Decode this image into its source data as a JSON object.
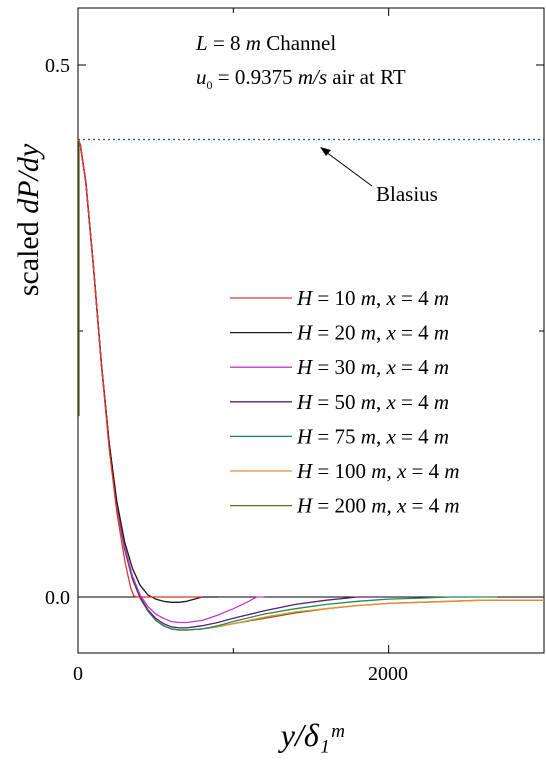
{
  "chart_data": {
    "type": "line",
    "xlabel": "y/δ₁ᵐ",
    "ylabel": "scaled dP/dy",
    "xlim": [
      0,
      3000
    ],
    "ylim": [
      -0.05,
      0.55
    ],
    "xticks": [
      0,
      2000
    ],
    "xtick_labels": [
      "0",
      "2000"
    ],
    "yticks": [
      0.0,
      0.5
    ],
    "ytick_labels": [
      "0.0",
      "0.5"
    ],
    "grid": false,
    "legend_position": "right",
    "annotations": {
      "line1_L": "L",
      "line1_text": " = 8 ",
      "line1_m": "m",
      "line1_channel": " Channel",
      "line2_u": "u",
      "line2_sub": "0",
      "line2_text": " = 0.9375 ",
      "line2_unit": "m/s",
      "line2_tail": " air at RT",
      "blasius": "Blasius"
    },
    "reference_line": {
      "name": "Blasius",
      "y": 0.43,
      "color": "#1f4e9c"
    },
    "series": [
      {
        "name": "H = 10 m, x = 4 m",
        "H": "10",
        "x_val": "4",
        "color": "#e8332a",
        "x": [
          0,
          15,
          50,
          100,
          150,
          200,
          250,
          300,
          340,
          360,
          380,
          400,
          500,
          600,
          700,
          800
        ],
        "y": [
          0.43,
          0.425,
          0.39,
          0.31,
          0.22,
          0.14,
          0.08,
          0.035,
          0.008,
          0.001,
          0.0,
          0.0,
          0.0,
          0.0,
          0.0,
          0.0
        ]
      },
      {
        "name": "H = 20 m, x = 4 m",
        "H": "20",
        "x_val": "4",
        "color": "#1a1a1a",
        "x": [
          0,
          15,
          50,
          100,
          150,
          200,
          250,
          300,
          350,
          400,
          450,
          500,
          550,
          600,
          650,
          700,
          750,
          800,
          900
        ],
        "y": [
          0.43,
          0.425,
          0.39,
          0.31,
          0.22,
          0.145,
          0.09,
          0.052,
          0.027,
          0.011,
          0.002,
          -0.002,
          -0.004,
          -0.005,
          -0.005,
          -0.004,
          -0.002,
          0.0,
          0.0
        ]
      },
      {
        "name": "H = 30 m, x = 4 m",
        "H": "30",
        "x_val": "4",
        "color": "#c03cc8",
        "x": [
          0,
          15,
          50,
          100,
          150,
          200,
          250,
          300,
          350,
          400,
          450,
          500,
          550,
          600,
          650,
          700,
          800,
          900,
          1000,
          1100,
          1150,
          1200
        ],
        "y": [
          0.43,
          0.425,
          0.39,
          0.31,
          0.22,
          0.145,
          0.088,
          0.048,
          0.02,
          0.002,
          -0.009,
          -0.016,
          -0.02,
          -0.023,
          -0.024,
          -0.024,
          -0.022,
          -0.017,
          -0.011,
          -0.004,
          0.0,
          0.0
        ]
      },
      {
        "name": "H = 50 m, x = 4 m",
        "H": "50",
        "x_val": "4",
        "color": "#5a1c78",
        "x": [
          0,
          15,
          50,
          100,
          150,
          200,
          250,
          300,
          350,
          400,
          450,
          500,
          550,
          600,
          650,
          700,
          800,
          900,
          1000,
          1200,
          1400,
          1600,
          1800,
          1900,
          2000
        ],
        "y": [
          0.43,
          0.425,
          0.39,
          0.31,
          0.22,
          0.145,
          0.087,
          0.046,
          0.018,
          0.0,
          -0.012,
          -0.02,
          -0.025,
          -0.028,
          -0.029,
          -0.029,
          -0.027,
          -0.024,
          -0.02,
          -0.013,
          -0.007,
          -0.003,
          0.0,
          0.0,
          0.0
        ]
      },
      {
        "name": "H = 75 m, x = 4 m",
        "H": "75",
        "x_val": "4",
        "color": "#1e8c5a",
        "x": [
          0,
          15,
          50,
          100,
          150,
          200,
          250,
          300,
          350,
          400,
          450,
          500,
          550,
          600,
          650,
          700,
          800,
          900,
          1000,
          1200,
          1400,
          1600,
          1800,
          2000,
          2200,
          2400,
          2600,
          2700
        ],
        "y": [
          0.43,
          0.425,
          0.39,
          0.31,
          0.22,
          0.145,
          0.087,
          0.045,
          0.017,
          -0.001,
          -0.013,
          -0.022,
          -0.027,
          -0.03,
          -0.031,
          -0.031,
          -0.03,
          -0.027,
          -0.023,
          -0.016,
          -0.011,
          -0.007,
          -0.004,
          -0.002,
          -0.001,
          0.0,
          0.0,
          0.0
        ]
      },
      {
        "name": "H = 100 m, x = 4 m",
        "H": "100",
        "x_val": "4",
        "color": "#f28a2e",
        "x": [
          0,
          15,
          50,
          100,
          150,
          200,
          250,
          300,
          350,
          400,
          450,
          500,
          550,
          600,
          650,
          700,
          800,
          900,
          1000,
          1200,
          1400,
          1600,
          1800,
          2000,
          2200,
          2400,
          2600,
          2800,
          3000
        ],
        "y": [
          0.43,
          0.425,
          0.39,
          0.31,
          0.22,
          0.145,
          0.087,
          0.045,
          0.017,
          -0.001,
          -0.013,
          -0.022,
          -0.027,
          -0.03,
          -0.031,
          -0.031,
          -0.03,
          -0.028,
          -0.025,
          -0.019,
          -0.014,
          -0.011,
          -0.008,
          -0.006,
          -0.005,
          -0.004,
          -0.003,
          -0.003,
          -0.003
        ]
      },
      {
        "name": "H = 200 m, x = 4 m",
        "H": "200",
        "x_val": "4",
        "color": "#6b6a1c",
        "x": [
          0,
          15,
          50,
          100,
          150,
          200,
          250,
          300,
          350,
          400,
          450,
          500,
          550,
          600,
          650,
          700,
          800,
          900,
          1000,
          1200,
          1400,
          1600,
          1800,
          2000,
          2200,
          2400,
          2600,
          2800,
          3000
        ],
        "y": [
          0.43,
          0.425,
          0.39,
          0.31,
          0.22,
          0.145,
          0.087,
          0.045,
          0.017,
          -0.001,
          -0.013,
          -0.022,
          -0.027,
          -0.03,
          -0.031,
          -0.031,
          -0.03,
          -0.028,
          -0.025,
          -0.02,
          -0.015,
          -0.011,
          -0.008,
          -0.006,
          -0.005,
          -0.004,
          -0.003,
          -0.003,
          -0.003
        ]
      }
    ]
  }
}
